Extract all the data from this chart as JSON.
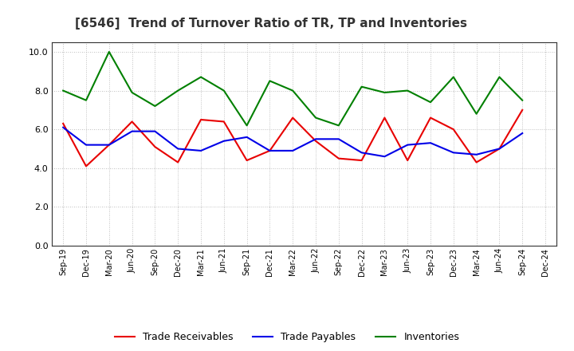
{
  "title": "[6546]  Trend of Turnover Ratio of TR, TP and Inventories",
  "x_labels": [
    "Sep-19",
    "Dec-19",
    "Mar-20",
    "Jun-20",
    "Sep-20",
    "Dec-20",
    "Mar-21",
    "Jun-21",
    "Sep-21",
    "Dec-21",
    "Mar-22",
    "Jun-22",
    "Sep-22",
    "Dec-22",
    "Mar-23",
    "Jun-23",
    "Sep-23",
    "Dec-23",
    "Mar-24",
    "Jun-24",
    "Sep-24",
    "Dec-24"
  ],
  "trade_receivables": [
    6.3,
    4.1,
    5.2,
    6.4,
    5.1,
    4.3,
    6.5,
    6.4,
    4.4,
    4.9,
    6.6,
    5.4,
    4.5,
    4.4,
    6.6,
    4.4,
    6.6,
    6.0,
    4.3,
    5.0,
    7.0,
    null
  ],
  "trade_payables": [
    6.1,
    5.2,
    5.2,
    5.9,
    5.9,
    5.0,
    4.9,
    5.4,
    5.6,
    4.9,
    4.9,
    5.5,
    5.5,
    4.8,
    4.6,
    5.2,
    5.3,
    4.8,
    4.7,
    5.0,
    5.8,
    null
  ],
  "inventories": [
    8.0,
    7.5,
    10.0,
    7.9,
    7.2,
    8.0,
    8.7,
    8.0,
    6.2,
    8.5,
    8.0,
    6.6,
    6.2,
    8.2,
    7.9,
    8.0,
    7.4,
    8.7,
    6.8,
    8.7,
    7.5,
    null
  ],
  "tr_color": "#e80000",
  "tp_color": "#0000e8",
  "inv_color": "#008000",
  "ylim": [
    0,
    10.5
  ],
  "yticks": [
    0.0,
    2.0,
    4.0,
    6.0,
    8.0,
    10.0
  ],
  "background_color": "#ffffff",
  "title_fontsize": 11,
  "legend_labels": [
    "Trade Receivables",
    "Trade Payables",
    "Inventories"
  ]
}
